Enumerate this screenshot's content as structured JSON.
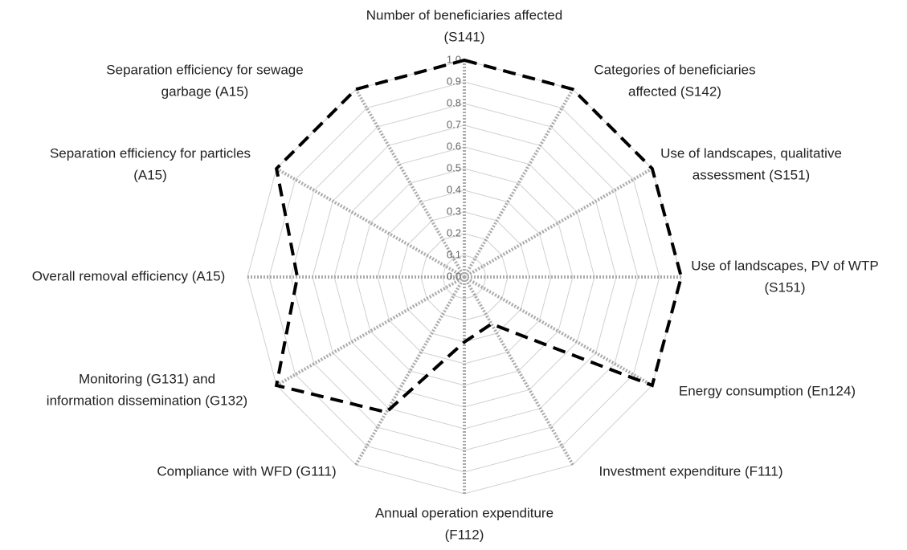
{
  "chart_data": {
    "type": "radar",
    "categories": [
      [
        "Number of beneficiaries affected",
        "(S141)"
      ],
      [
        "Categories of beneficiaries",
        "affected (S142)"
      ],
      [
        "Use of landscapes, qualitative",
        "assessment (S151)"
      ],
      [
        "Use of landscapes, PV of WTP",
        "(S151)"
      ],
      [
        "Energy consumption (En124)"
      ],
      [
        "Investment expenditure (F111)"
      ],
      [
        "Annual operation expenditure",
        "(F112)"
      ],
      [
        "Compliance with WFD (G111)"
      ],
      [
        "Monitoring (G131) and",
        "information dissemination (G132)"
      ],
      [
        "Overall removal efficiency  (A15)"
      ],
      [
        "Separation efficiency for particles",
        "(A15)"
      ],
      [
        "Separation efficiency for sewage",
        "garbage (A15)"
      ]
    ],
    "values": [
      1.0,
      1.0,
      1.0,
      1.0,
      1.0,
      0.25,
      0.3,
      0.72,
      1.0,
      0.77,
      1.0,
      1.0
    ],
    "color": "#000000",
    "ylim": [
      0,
      1
    ],
    "yticks": [
      {
        "value": 0,
        "label": "0.0"
      },
      0.1,
      0.2,
      0.3,
      0.4,
      0.5,
      0.6,
      0.7,
      0.8,
      0.9,
      {
        "value": 1,
        "label": "1.0"
      }
    ],
    "grid": true
  }
}
